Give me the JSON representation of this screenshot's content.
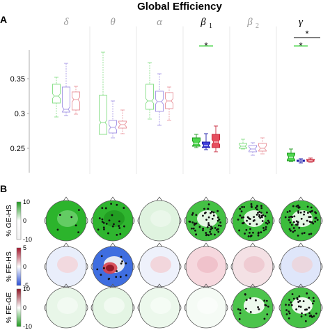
{
  "title": "Global Efficiency",
  "panel_a_label": "A",
  "panel_b_label": "B",
  "bands": [
    {
      "sym": "δ",
      "sub": "",
      "active": false
    },
    {
      "sym": "θ",
      "sub": "",
      "active": false
    },
    {
      "sym": "α",
      "sub": "",
      "active": false
    },
    {
      "sym": "β",
      "sub": "1",
      "active": true
    },
    {
      "sym": "β",
      "sub": "2",
      "active": false
    },
    {
      "sym": "γ",
      "sub": "",
      "active": true
    }
  ],
  "colors": {
    "GE": "#3bd23b",
    "FE": "#2b2bd6",
    "HS": "#e33b4d",
    "green_dark": "#1f9a1f",
    "blue_dark": "#1a1aa8",
    "red_dark": "#c8283b"
  },
  "significance": [
    {
      "band_index": 3,
      "marker": "*",
      "group": "GE"
    },
    {
      "band_index": 5,
      "marker": "*",
      "group": "GE",
      "comparison_marker": "*"
    }
  ],
  "chart_data": {
    "type": "box",
    "title": "Global Efficiency",
    "ylim": [
      0.2,
      0.4
    ],
    "yticks": [
      0.25,
      0.3,
      0.35
    ],
    "ytick_labels": [
      "0.25",
      "0.3",
      "0.35"
    ],
    "groups": [
      "GE",
      "FE",
      "HS"
    ],
    "categories": [
      "δ",
      "θ",
      "α",
      "β1",
      "β2",
      "γ"
    ],
    "boxes": [
      [
        {
          "group": "GE",
          "min": 0.295,
          "q1": 0.315,
          "median": 0.325,
          "q3": 0.342,
          "max": 0.352
        },
        {
          "group": "FE",
          "min": 0.297,
          "q1": 0.302,
          "median": 0.306,
          "q3": 0.338,
          "max": 0.372
        },
        {
          "group": "HS",
          "min": 0.299,
          "q1": 0.305,
          "median": 0.32,
          "q3": 0.331,
          "max": 0.339
        }
      ],
      [
        {
          "group": "GE",
          "min": 0.27,
          "q1": 0.27,
          "median": 0.287,
          "q3": 0.326,
          "max": 0.388
        },
        {
          "group": "FE",
          "min": 0.265,
          "q1": 0.272,
          "median": 0.28,
          "q3": 0.29,
          "max": 0.318
        },
        {
          "group": "HS",
          "min": 0.271,
          "q1": 0.279,
          "median": 0.284,
          "q3": 0.289,
          "max": 0.305
        }
      ],
      [
        {
          "group": "GE",
          "min": 0.292,
          "q1": 0.306,
          "median": 0.318,
          "q3": 0.342,
          "max": 0.373
        },
        {
          "group": "FE",
          "min": 0.283,
          "q1": 0.303,
          "median": 0.317,
          "q3": 0.332,
          "max": 0.357
        },
        {
          "group": "HS",
          "min": 0.29,
          "q1": 0.307,
          "median": 0.318,
          "q3": 0.33,
          "max": 0.338
        }
      ],
      [
        {
          "group": "GE",
          "min": 0.251,
          "q1": 0.253,
          "median": 0.257,
          "q3": 0.265,
          "max": 0.27
        },
        {
          "group": "FE",
          "min": 0.248,
          "q1": 0.251,
          "median": 0.254,
          "q3": 0.259,
          "max": 0.271
        },
        {
          "group": "HS",
          "min": 0.245,
          "q1": 0.251,
          "median": 0.259,
          "q3": 0.27,
          "max": 0.282
        }
      ],
      [
        {
          "group": "GE",
          "min": 0.249,
          "q1": 0.25,
          "median": 0.253,
          "q3": 0.257,
          "max": 0.263
        },
        {
          "group": "FE",
          "min": 0.24,
          "q1": 0.245,
          "median": 0.249,
          "q3": 0.254,
          "max": 0.258
        },
        {
          "group": "HS",
          "min": 0.242,
          "q1": 0.246,
          "median": 0.25,
          "q3": 0.257,
          "max": 0.265
        }
      ],
      [
        {
          "group": "GE",
          "min": 0.231,
          "q1": 0.232,
          "median": 0.237,
          "q3": 0.243,
          "max": 0.249
        },
        {
          "group": "FE",
          "min": 0.229,
          "q1": 0.231,
          "median": 0.232,
          "q3": 0.233,
          "max": 0.235
        },
        {
          "group": "HS",
          "min": 0.23,
          "q1": 0.231,
          "median": 0.232,
          "q3": 0.234,
          "max": 0.236
        }
      ]
    ]
  },
  "topomaps": {
    "rows": [
      {
        "label": "% GE-HS",
        "cbar": {
          "max": 10,
          "min": -10,
          "tick_labels": [
            "10",
            "0",
            "-10"
          ],
          "colors": [
            "#1f9a1f",
            "#ffffff",
            "#f2f2f2"
          ]
        },
        "cells": [
          {
            "fill": "#2cb42c",
            "patches": [
              {
                "c": "#72d272",
                "o": 0.8
              }
            ],
            "n_dots": 6
          },
          {
            "fill": "#2fb52f",
            "patches": [
              {
                "c": "#1a8f1a",
                "o": 0.6
              }
            ],
            "n_dots": 24
          },
          {
            "fill": "#dff3df",
            "patches": [
              {
                "c": "#ecf8ec",
                "o": 0.8
              }
            ],
            "n_dots": 0
          },
          {
            "fill": "#44c144",
            "patches": [
              {
                "c": "#ffffff",
                "o": 0.85
              }
            ],
            "n_dots": 58
          },
          {
            "fill": "#3ebe3e",
            "patches": [
              {
                "c": "#ffffff",
                "o": 0.85
              }
            ],
            "n_dots": 64
          },
          {
            "fill": "#3cbd3c",
            "patches": [
              {
                "c": "#ffffff",
                "o": 0.85
              }
            ],
            "n_dots": 62
          }
        ]
      },
      {
        "label": "% FE-HS",
        "cbar": {
          "max": 5,
          "min": -5,
          "tick_labels": [
            "5",
            "0",
            "-5"
          ],
          "colors": [
            "#a3132a",
            "#ffffff",
            "#2a4fd6"
          ]
        },
        "cells": [
          {
            "fill": "#e9eefb",
            "patches": [
              {
                "c": "#f3d6db",
                "o": 0.9
              }
            ],
            "n_dots": 0
          },
          {
            "fill": "#3f6ee0",
            "patches": [
              {
                "c": "#f5f5f5",
                "o": 0.9
              },
              {
                "c": "#d7424f",
                "o": 0.9
              },
              {
                "c": "#8e1424",
                "o": 0.9
              }
            ],
            "n_dots": 14
          },
          {
            "fill": "#eef1fb",
            "patches": [
              {
                "c": "#f2d3d8",
                "o": 0.9
              }
            ],
            "n_dots": 0
          },
          {
            "fill": "#f6d8de",
            "patches": [
              {
                "c": "#efbdc6",
                "o": 0.8
              }
            ],
            "n_dots": 0
          },
          {
            "fill": "#f4e1e5",
            "patches": [
              {
                "c": "#eec6cd",
                "o": 0.8
              }
            ],
            "n_dots": 0
          },
          {
            "fill": "#dfe6fa",
            "patches": [
              {
                "c": "#eed3d8",
                "o": 0.8
              }
            ],
            "n_dots": 0
          }
        ]
      },
      {
        "label": "% FE-GE",
        "cbar": {
          "max": 10,
          "min": -10,
          "tick_labels": [
            "10",
            "0",
            "-10"
          ],
          "colors": [
            "#8e1424",
            "#ffffff",
            "#1f9a1f"
          ]
        },
        "cells": [
          {
            "fill": "#e8f6e8",
            "patches": [
              {
                "c": "#f4fbf4",
                "o": 0.8
              }
            ],
            "n_dots": 0
          },
          {
            "fill": "#e4f5e4",
            "patches": [
              {
                "c": "#f4fbf4",
                "o": 0.8
              }
            ],
            "n_dots": 0
          },
          {
            "fill": "#ecf8ec",
            "patches": [
              {
                "c": "#f7fcf7",
                "o": 0.8
              }
            ],
            "n_dots": 0
          },
          {
            "fill": "#f5fbf5",
            "patches": [
              {
                "c": "#fbfefb",
                "o": 0.8
              }
            ],
            "n_dots": 0
          },
          {
            "fill": "#4cc44c",
            "patches": [
              {
                "c": "#ffffff",
                "o": 0.9
              }
            ],
            "n_dots": 20
          },
          {
            "fill": "#46c246",
            "patches": [
              {
                "c": "#ffffff",
                "o": 0.9
              }
            ],
            "n_dots": 40
          }
        ]
      }
    ]
  }
}
